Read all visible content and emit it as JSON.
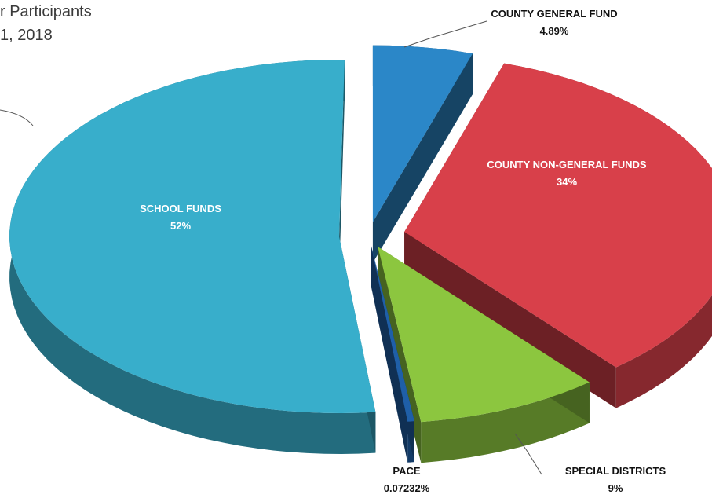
{
  "title": {
    "line1": "r Participants",
    "line2": "1, 2018"
  },
  "chart_data": {
    "type": "pie",
    "style": "3d-exploded",
    "slices": [
      {
        "name": "COUNTY GENERAL FUND",
        "value": 4.89,
        "label": "4.89%",
        "color": "#2B87C8"
      },
      {
        "name": "COUNTY NON-GENERAL FUNDS",
        "value": 34,
        "label": "34%",
        "color": "#D8404A"
      },
      {
        "name": "SPECIAL DISTRICTS",
        "value": 9,
        "label": "9%",
        "color": "#8CC63F"
      },
      {
        "name": "PACE",
        "value": 0.07232,
        "label": "0.07232%",
        "color": "#1F5FA8"
      },
      {
        "name": "SCHOOL FUNDS",
        "value": 52,
        "label": "52%",
        "color": "#38AECB"
      }
    ]
  }
}
